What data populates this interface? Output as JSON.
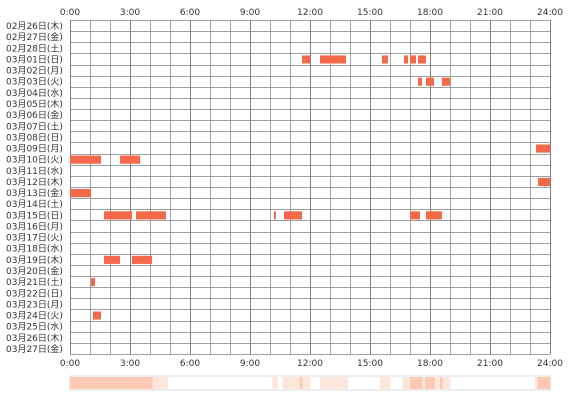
{
  "chart_data": {
    "type": "heatmap",
    "x_ticks": [
      "0:00",
      "3:00",
      "6:00",
      "9:00",
      "12:00",
      "15:00",
      "18:00",
      "21:00",
      "24:00"
    ],
    "x_range_hours": [
      0,
      24
    ],
    "rows": [
      {
        "label": "02月26日(木)",
        "segments": []
      },
      {
        "label": "02月27日(金)",
        "segments": []
      },
      {
        "label": "02月28日(土)",
        "segments": []
      },
      {
        "label": "03月01日(日)",
        "segments": [
          [
            11.6,
            12.0
          ],
          [
            12.5,
            13.8
          ],
          [
            15.6,
            15.9
          ],
          [
            16.7,
            16.9
          ],
          [
            17.0,
            17.3
          ],
          [
            17.4,
            17.8
          ]
        ]
      },
      {
        "label": "03月02日(月)",
        "segments": []
      },
      {
        "label": "03月03日(火)",
        "segments": [
          [
            17.4,
            17.6
          ],
          [
            17.8,
            18.2
          ],
          [
            18.6,
            19.0
          ]
        ]
      },
      {
        "label": "03月04日(水)",
        "segments": []
      },
      {
        "label": "03月05日(木)",
        "segments": []
      },
      {
        "label": "03月06日(金)",
        "segments": []
      },
      {
        "label": "03月07日(土)",
        "segments": []
      },
      {
        "label": "03月08日(日)",
        "segments": []
      },
      {
        "label": "03月09日(月)",
        "segments": [
          [
            23.3,
            24.0
          ]
        ]
      },
      {
        "label": "03月10日(火)",
        "segments": [
          [
            0.0,
            1.55
          ],
          [
            2.5,
            3.5
          ]
        ]
      },
      {
        "label": "03月11日(水)",
        "segments": []
      },
      {
        "label": "03月12日(木)",
        "segments": [
          [
            23.4,
            24.0
          ]
        ]
      },
      {
        "label": "03月13日(金)",
        "segments": [
          [
            0.0,
            1.05
          ]
        ]
      },
      {
        "label": "03月14日(土)",
        "segments": []
      },
      {
        "label": "03月15日(日)",
        "segments": [
          [
            1.7,
            3.1
          ],
          [
            3.3,
            4.8
          ],
          [
            10.2,
            10.3
          ],
          [
            10.7,
            11.6
          ],
          [
            17.0,
            17.5
          ],
          [
            17.8,
            18.6
          ]
        ]
      },
      {
        "label": "03月16日(月)",
        "segments": []
      },
      {
        "label": "03月17日(火)",
        "segments": []
      },
      {
        "label": "03月18日(水)",
        "segments": []
      },
      {
        "label": "03月19日(木)",
        "segments": [
          [
            1.7,
            2.5
          ],
          [
            3.1,
            4.1
          ]
        ]
      },
      {
        "label": "03月20日(金)",
        "segments": []
      },
      {
        "label": "03月21日(土)",
        "segments": [
          [
            1.05,
            1.25
          ]
        ]
      },
      {
        "label": "03月22日(日)",
        "segments": []
      },
      {
        "label": "03月23日(月)",
        "segments": []
      },
      {
        "label": "03月24日(火)",
        "segments": [
          [
            1.15,
            1.55
          ]
        ]
      },
      {
        "label": "03月25日(水)",
        "segments": []
      },
      {
        "label": "03月26日(木)",
        "segments": []
      },
      {
        "label": "03月27日(金)",
        "segments": []
      }
    ],
    "colors": {
      "bar": "#f4694a",
      "grid": "#808080",
      "summary_light": "#fde6dc",
      "summary_mid": "#fbc9b4"
    }
  }
}
